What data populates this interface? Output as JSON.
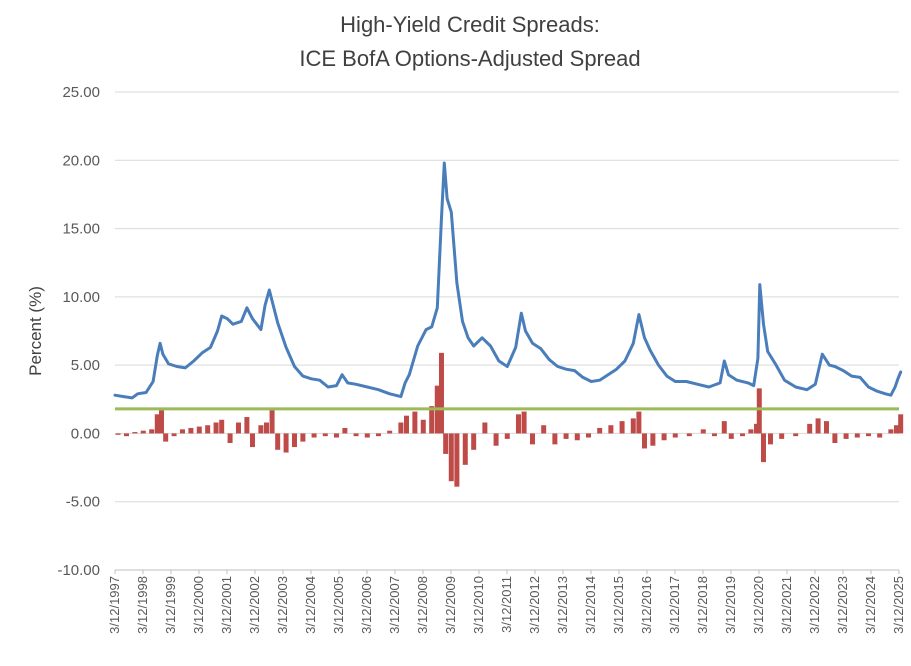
{
  "chart_data": {
    "type": "line",
    "title": [
      "High-Yield Credit Spreads:",
      "ICE BofA Options-Adjusted Spread"
    ],
    "xlabel": "",
    "ylabel": "Percent (%)",
    "ylim": [
      -10,
      25
    ],
    "y_ticks": [
      "25.00",
      "20.00",
      "15.00",
      "10.00",
      "5.00",
      "0.00",
      "-5.00",
      "-10.00"
    ],
    "x_ticks": [
      "3/12/1997",
      "3/12/1998",
      "3/12/1999",
      "3/12/2000",
      "3/12/2001",
      "3/12/2002",
      "3/12/2003",
      "3/12/2004",
      "3/12/2005",
      "3/12/2006",
      "3/12/2007",
      "3/12/2008",
      "3/12/2009",
      "3/12/2010",
      "3/12/2011",
      "3/12/2012",
      "3/12/2013",
      "3/12/2014",
      "3/12/2015",
      "3/12/2016",
      "3/12/2017",
      "3/12/2018",
      "3/12/2019",
      "3/12/2020",
      "3/12/2021",
      "3/12/2022",
      "3/12/2023",
      "3/12/2024",
      "3/12/2025"
    ],
    "grid": true,
    "colors": {
      "spread": "#4a7ebb",
      "change": "#be4b48",
      "threshold": "#9bbb59"
    },
    "series": [
      {
        "kind": "line",
        "x": [
          1997.19,
          1997.5,
          1997.8,
          1998.0,
          1998.3,
          1998.55,
          1998.7,
          1998.8,
          1998.9,
          1999.1,
          1999.4,
          1999.7,
          2000.0,
          2000.3,
          2000.6,
          2000.85,
          2001.0,
          2001.2,
          2001.4,
          2001.7,
          2001.9,
          2002.1,
          2002.4,
          2002.55,
          2002.7,
          2002.8,
          2003.0,
          2003.3,
          2003.6,
          2003.9,
          2004.2,
          2004.5,
          2004.8,
          2005.1,
          2005.3,
          2005.5,
          2005.8,
          2006.2,
          2006.6,
          2007.0,
          2007.4,
          2007.55,
          2007.7,
          2008.0,
          2008.3,
          2008.5,
          2008.7,
          2008.85,
          2008.95,
          2009.05,
          2009.2,
          2009.4,
          2009.6,
          2009.8,
          2010.0,
          2010.3,
          2010.6,
          2010.9,
          2011.2,
          2011.5,
          2011.7,
          2011.85,
          2012.1,
          2012.4,
          2012.7,
          2013.0,
          2013.3,
          2013.6,
          2013.9,
          2014.2,
          2014.5,
          2014.8,
          2015.1,
          2015.4,
          2015.7,
          2015.9,
          2016.1,
          2016.3,
          2016.6,
          2016.9,
          2017.2,
          2017.6,
          2018.0,
          2018.4,
          2018.8,
          2018.95,
          2019.1,
          2019.4,
          2019.8,
          2020.0,
          2020.15,
          2020.22,
          2020.35,
          2020.5,
          2020.8,
          2021.1,
          2021.5,
          2021.9,
          2022.2,
          2022.45,
          2022.7,
          2022.9,
          2023.2,
          2023.5,
          2023.8,
          2024.1,
          2024.4,
          2024.7,
          2024.9,
          2025.05,
          2025.15,
          2025.25
        ],
        "values": [
          2.8,
          2.7,
          2.6,
          2.9,
          3.0,
          3.8,
          5.7,
          6.6,
          5.8,
          5.1,
          4.9,
          4.8,
          5.3,
          5.9,
          6.3,
          7.5,
          8.6,
          8.4,
          8.0,
          8.2,
          9.2,
          8.4,
          7.6,
          9.4,
          10.5,
          9.7,
          8.1,
          6.3,
          4.9,
          4.2,
          4.0,
          3.9,
          3.4,
          3.5,
          4.3,
          3.7,
          3.6,
          3.4,
          3.2,
          2.9,
          2.7,
          3.7,
          4.3,
          6.4,
          7.6,
          7.8,
          9.2,
          15.8,
          19.8,
          17.2,
          16.2,
          11.0,
          8.2,
          7.0,
          6.4,
          7.0,
          6.4,
          5.3,
          4.9,
          6.3,
          8.8,
          7.5,
          6.6,
          6.2,
          5.4,
          4.9,
          4.7,
          4.6,
          4.1,
          3.8,
          3.9,
          4.3,
          4.7,
          5.3,
          6.6,
          8.7,
          7.0,
          6.1,
          5.0,
          4.2,
          3.8,
          3.8,
          3.6,
          3.4,
          3.7,
          5.3,
          4.3,
          3.9,
          3.7,
          3.5,
          5.5,
          10.9,
          8.0,
          6.0,
          5.0,
          3.9,
          3.4,
          3.2,
          3.6,
          5.8,
          5.0,
          4.9,
          4.6,
          4.2,
          4.1,
          3.4,
          3.1,
          2.9,
          2.8,
          3.4,
          4.0,
          4.5
        ]
      },
      {
        "kind": "bar",
        "x": [
          1997.3,
          1997.6,
          1997.9,
          1998.2,
          1998.5,
          1998.7,
          1998.85,
          1999.0,
          1999.3,
          1999.6,
          1999.9,
          2000.2,
          2000.5,
          2000.8,
          2001.0,
          2001.3,
          2001.6,
          2001.9,
          2002.1,
          2002.4,
          2002.6,
          2002.8,
          2003.0,
          2003.3,
          2003.6,
          2003.9,
          2004.3,
          2004.7,
          2005.1,
          2005.4,
          2005.8,
          2006.2,
          2006.6,
          2007.0,
          2007.4,
          2007.6,
          2007.9,
          2008.2,
          2008.5,
          2008.7,
          2008.85,
          2009.0,
          2009.2,
          2009.4,
          2009.7,
          2010.0,
          2010.4,
          2010.8,
          2011.2,
          2011.6,
          2011.8,
          2012.1,
          2012.5,
          2012.9,
          2013.3,
          2013.7,
          2014.1,
          2014.5,
          2014.9,
          2015.3,
          2015.7,
          2015.9,
          2016.1,
          2016.4,
          2016.8,
          2017.2,
          2017.7,
          2018.2,
          2018.6,
          2018.95,
          2019.2,
          2019.6,
          2019.9,
          2020.1,
          2020.2,
          2020.35,
          2020.6,
          2021.0,
          2021.5,
          2022.0,
          2022.3,
          2022.6,
          2022.9,
          2023.3,
          2023.7,
          2024.1,
          2024.5,
          2024.9,
          2025.1,
          2025.25
        ],
        "values": [
          -0.1,
          -0.2,
          0.1,
          0.2,
          0.3,
          1.4,
          1.7,
          -0.6,
          -0.2,
          0.3,
          0.4,
          0.5,
          0.6,
          0.8,
          1.0,
          -0.7,
          0.8,
          1.2,
          -1.0,
          0.6,
          0.8,
          1.7,
          -1.2,
          -1.4,
          -1.0,
          -0.6,
          -0.3,
          -0.2,
          -0.3,
          0.4,
          -0.2,
          -0.3,
          -0.2,
          0.2,
          0.8,
          1.3,
          1.6,
          1.0,
          2.0,
          3.5,
          5.9,
          -1.5,
          -3.5,
          -3.9,
          -2.3,
          -1.2,
          0.8,
          -0.9,
          -0.4,
          1.4,
          1.6,
          -0.8,
          0.6,
          -0.8,
          -0.4,
          -0.5,
          -0.3,
          0.4,
          0.6,
          0.9,
          1.1,
          1.6,
          -1.1,
          -0.9,
          -0.5,
          -0.3,
          -0.2,
          0.3,
          -0.2,
          0.9,
          -0.4,
          -0.2,
          0.3,
          0.7,
          3.3,
          -2.1,
          -0.8,
          -0.4,
          -0.2,
          0.7,
          1.1,
          0.9,
          -0.7,
          -0.4,
          -0.3,
          -0.2,
          -0.3,
          0.3,
          0.6,
          1.4
        ]
      },
      {
        "kind": "hline",
        "value": 1.8
      }
    ]
  }
}
